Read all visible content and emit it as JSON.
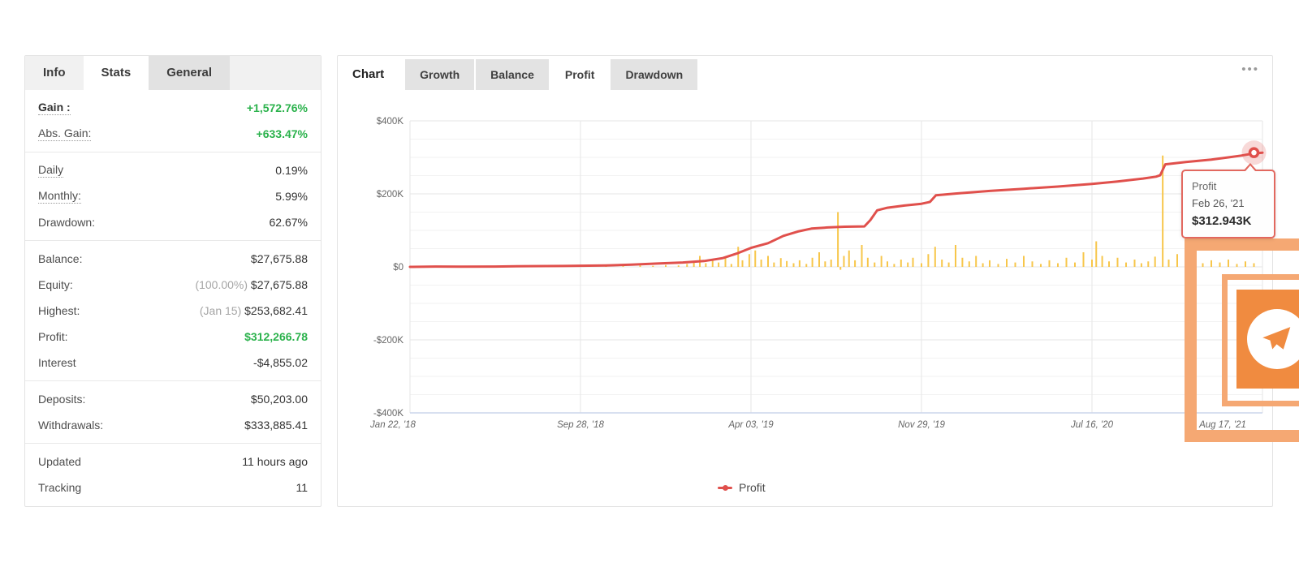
{
  "colors": {
    "green": "#2bb24c",
    "line_red": "#e0504c",
    "bar_yellow": "#f7c64a",
    "tooltip_border": "#e2685f",
    "overlay_orange": "#f08b40",
    "overlay_frame": "#f5a873",
    "halo": "rgba(224,80,76,0.22)"
  },
  "info_panel": {
    "tabs": [
      {
        "label": "Info",
        "active": false,
        "shaded": false
      },
      {
        "label": "Stats",
        "active": true,
        "shaded": false
      },
      {
        "label": "General",
        "active": false,
        "shaded": true
      }
    ],
    "groups": [
      [
        {
          "label": "Gain :",
          "value": "+1,572.76%",
          "green": true,
          "bold_label": true,
          "dotted": true
        },
        {
          "label": "Abs. Gain:",
          "value": "+633.47%",
          "green": true,
          "dotted": true
        }
      ],
      [
        {
          "label": "Daily",
          "value": "0.19%",
          "dotted": true
        },
        {
          "label": "Monthly:",
          "value": "5.99%",
          "dotted": true
        },
        {
          "label": "Drawdown:",
          "value": "62.67%"
        }
      ],
      [
        {
          "label": "Balance:",
          "value": "$27,675.88"
        },
        {
          "label": "Equity:",
          "value": "$27,675.88",
          "prefix": "(100.00%) "
        },
        {
          "label": "Highest:",
          "value": "$253,682.41",
          "prefix": "(Jan 15) "
        },
        {
          "label": "Profit:",
          "value": "$312,266.78",
          "green": true
        },
        {
          "label": "Interest",
          "value": "-$4,855.02"
        }
      ],
      [
        {
          "label": "Deposits:",
          "value": "$50,203.00"
        },
        {
          "label": "Withdrawals:",
          "value": "$333,885.41"
        }
      ],
      [
        {
          "label": "Updated",
          "value": "11 hours ago"
        },
        {
          "label": "Tracking",
          "value": "11"
        }
      ]
    ]
  },
  "chart_panel": {
    "title": "Chart",
    "tabs": [
      {
        "label": "Growth",
        "active": false
      },
      {
        "label": "Balance",
        "active": false
      },
      {
        "label": "Profit",
        "active": true
      },
      {
        "label": "Drawdown",
        "active": false
      }
    ],
    "menu_icon": "•••",
    "legend": {
      "label": "Profit"
    },
    "tooltip": {
      "series": "Profit",
      "date": "Feb 26, '21",
      "value": "$312.943K"
    }
  },
  "chart_data": {
    "type": "line",
    "title": "Profit",
    "xlabel": "",
    "ylabel": "",
    "x_tick_labels": [
      "Jan 22, '18",
      "Sep 28, '18",
      "Apr 03, '19",
      "Nov 29, '19",
      "Jul 16, '20",
      "Aug 17, '21"
    ],
    "y_tick_labels": [
      "$400K",
      "$200K",
      "$0",
      "-$200K",
      "-$400K"
    ],
    "y_tick_values_k": [
      400,
      200,
      0,
      -200,
      -400
    ],
    "ylim_k": [
      -400,
      400
    ],
    "minor_grid_step_k": 50,
    "grid": true,
    "legend_position": "bottom",
    "series": [
      {
        "name": "Profit",
        "type": "line",
        "color": "#e0504c",
        "points_t_k": [
          [
            0,
            0
          ],
          [
            0.03,
            1
          ],
          [
            0.06,
            0.5
          ],
          [
            0.1,
            1
          ],
          [
            0.14,
            2
          ],
          [
            0.18,
            2.5
          ],
          [
            0.2,
            3
          ],
          [
            0.23,
            4
          ],
          [
            0.26,
            6
          ],
          [
            0.29,
            9
          ],
          [
            0.32,
            12
          ],
          [
            0.345,
            16
          ],
          [
            0.367,
            24
          ],
          [
            0.385,
            38
          ],
          [
            0.4,
            52
          ],
          [
            0.42,
            65
          ],
          [
            0.438,
            85
          ],
          [
            0.455,
            97
          ],
          [
            0.471,
            105
          ],
          [
            0.49,
            108
          ],
          [
            0.51,
            110
          ],
          [
            0.533,
            111
          ],
          [
            0.54,
            128
          ],
          [
            0.548,
            155
          ],
          [
            0.56,
            162
          ],
          [
            0.58,
            168
          ],
          [
            0.6,
            173
          ],
          [
            0.61,
            178
          ],
          [
            0.617,
            196
          ],
          [
            0.64,
            201
          ],
          [
            0.68,
            208
          ],
          [
            0.72,
            214
          ],
          [
            0.76,
            220
          ],
          [
            0.8,
            227
          ],
          [
            0.83,
            234
          ],
          [
            0.86,
            242
          ],
          [
            0.875,
            247
          ],
          [
            0.88,
            251
          ],
          [
            0.886,
            281
          ],
          [
            0.91,
            287
          ],
          [
            0.94,
            294
          ],
          [
            0.96,
            300
          ],
          [
            0.975,
            305
          ],
          [
            0.99,
            311
          ],
          [
            1.0,
            313
          ]
        ]
      },
      {
        "name": "Daily Profit",
        "type": "bar",
        "color": "#f7c64a",
        "points_t_k": [
          [
            0.03,
            1.5
          ],
          [
            0.06,
            1
          ],
          [
            0.09,
            2
          ],
          [
            0.12,
            1.5
          ],
          [
            0.145,
            2
          ],
          [
            0.17,
            1
          ],
          [
            0.19,
            2
          ],
          [
            0.21,
            2.5
          ],
          [
            0.23,
            3
          ],
          [
            0.25,
            2
          ],
          [
            0.27,
            4
          ],
          [
            0.285,
            3
          ],
          [
            0.3,
            5
          ],
          [
            0.315,
            4
          ],
          [
            0.325,
            8
          ],
          [
            0.333,
            14
          ],
          [
            0.34,
            30
          ],
          [
            0.347,
            10
          ],
          [
            0.355,
            22
          ],
          [
            0.362,
            12
          ],
          [
            0.37,
            28
          ],
          [
            0.377,
            8
          ],
          [
            0.385,
            55
          ],
          [
            0.39,
            18
          ],
          [
            0.398,
            35
          ],
          [
            0.405,
            45
          ],
          [
            0.412,
            20
          ],
          [
            0.42,
            30
          ],
          [
            0.427,
            12
          ],
          [
            0.435,
            24
          ],
          [
            0.442,
            16
          ],
          [
            0.45,
            10
          ],
          [
            0.457,
            18
          ],
          [
            0.465,
            8
          ],
          [
            0.472,
            25
          ],
          [
            0.48,
            40
          ],
          [
            0.487,
            15
          ],
          [
            0.494,
            20
          ],
          [
            0.502,
            150
          ],
          [
            0.505,
            -8
          ],
          [
            0.509,
            30
          ],
          [
            0.515,
            45
          ],
          [
            0.522,
            18
          ],
          [
            0.53,
            60
          ],
          [
            0.537,
            25
          ],
          [
            0.545,
            12
          ],
          [
            0.553,
            30
          ],
          [
            0.56,
            15
          ],
          [
            0.568,
            8
          ],
          [
            0.576,
            20
          ],
          [
            0.584,
            12
          ],
          [
            0.59,
            25
          ],
          [
            0.6,
            10
          ],
          [
            0.608,
            35
          ],
          [
            0.616,
            55
          ],
          [
            0.624,
            20
          ],
          [
            0.632,
            12
          ],
          [
            0.64,
            60
          ],
          [
            0.648,
            25
          ],
          [
            0.656,
            15
          ],
          [
            0.664,
            30
          ],
          [
            0.672,
            10
          ],
          [
            0.68,
            18
          ],
          [
            0.69,
            8
          ],
          [
            0.7,
            22
          ],
          [
            0.71,
            12
          ],
          [
            0.72,
            30
          ],
          [
            0.73,
            15
          ],
          [
            0.74,
            8
          ],
          [
            0.75,
            18
          ],
          [
            0.76,
            10
          ],
          [
            0.77,
            25
          ],
          [
            0.78,
            12
          ],
          [
            0.79,
            40
          ],
          [
            0.8,
            20
          ],
          [
            0.805,
            70
          ],
          [
            0.812,
            30
          ],
          [
            0.82,
            15
          ],
          [
            0.83,
            25
          ],
          [
            0.84,
            12
          ],
          [
            0.85,
            20
          ],
          [
            0.858,
            10
          ],
          [
            0.866,
            15
          ],
          [
            0.874,
            28
          ],
          [
            0.883,
            305
          ],
          [
            0.89,
            20
          ],
          [
            0.9,
            35
          ],
          [
            0.91,
            15
          ],
          [
            0.92,
            25
          ],
          [
            0.93,
            10
          ],
          [
            0.94,
            18
          ],
          [
            0.95,
            12
          ],
          [
            0.96,
            20
          ],
          [
            0.97,
            8
          ],
          [
            0.98,
            15
          ],
          [
            0.99,
            10
          ]
        ]
      }
    ],
    "end_marker": {
      "t": 0.99,
      "value_k": 312.943,
      "date": "Feb 26, '21",
      "label": "$312.943K"
    }
  }
}
